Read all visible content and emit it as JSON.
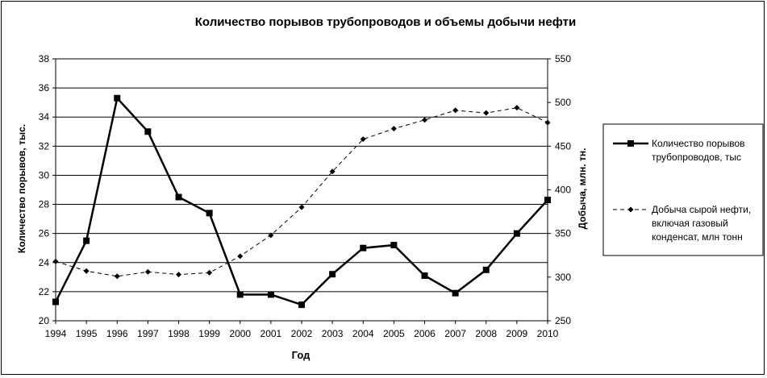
{
  "chart_data": {
    "type": "line",
    "title": "Количество порывов трубопроводов и объемы добычи нефти",
    "xlabel": "Год",
    "ylabel_left": "Количество порывов, тыс.",
    "ylabel_right": "Добыча, млн. тн.",
    "x": [
      "1994",
      "1995",
      "1996",
      "1997",
      "1998",
      "1999",
      "2000",
      "2001",
      "2002",
      "2003",
      "2004",
      "2005",
      "2006",
      "2007",
      "2008",
      "2009",
      "2010"
    ],
    "y_left": {
      "min": 20,
      "max": 38,
      "step": 2,
      "ticks": [
        "20",
        "22",
        "24",
        "26",
        "28",
        "30",
        "32",
        "34",
        "36",
        "38"
      ]
    },
    "y_right": {
      "min": 250,
      "max": 550,
      "step": 50,
      "ticks": [
        "250",
        "300",
        "350",
        "400",
        "450",
        "500",
        "550"
      ]
    },
    "grid": "horizontal",
    "legend_position": "right",
    "series": [
      {
        "name": "Количество порывов трубопроводов, тыс",
        "legend_lines": [
          "Количество порывов",
          "трубопроводов, тыс"
        ],
        "axis": "left",
        "style": "solid",
        "marker": "square",
        "color": "#000000",
        "values": [
          21.3,
          25.5,
          35.3,
          33.0,
          28.5,
          27.4,
          21.8,
          21.8,
          21.1,
          23.2,
          25.0,
          25.2,
          23.1,
          21.9,
          23.5,
          26.0,
          28.3
        ]
      },
      {
        "name": "Добыча сырой нефти, включая газовый конденсат, млн тонн",
        "legend_lines": [
          "Добыча сырой нефти,",
          "включая газовый",
          "конденсат, млн тонн"
        ],
        "axis": "right",
        "style": "dashed",
        "marker": "diamond",
        "color": "#000000",
        "values": [
          318,
          307,
          301,
          306,
          303,
          305,
          324,
          348,
          380,
          421,
          458,
          470,
          480,
          491,
          488,
          494,
          477
        ]
      }
    ]
  }
}
